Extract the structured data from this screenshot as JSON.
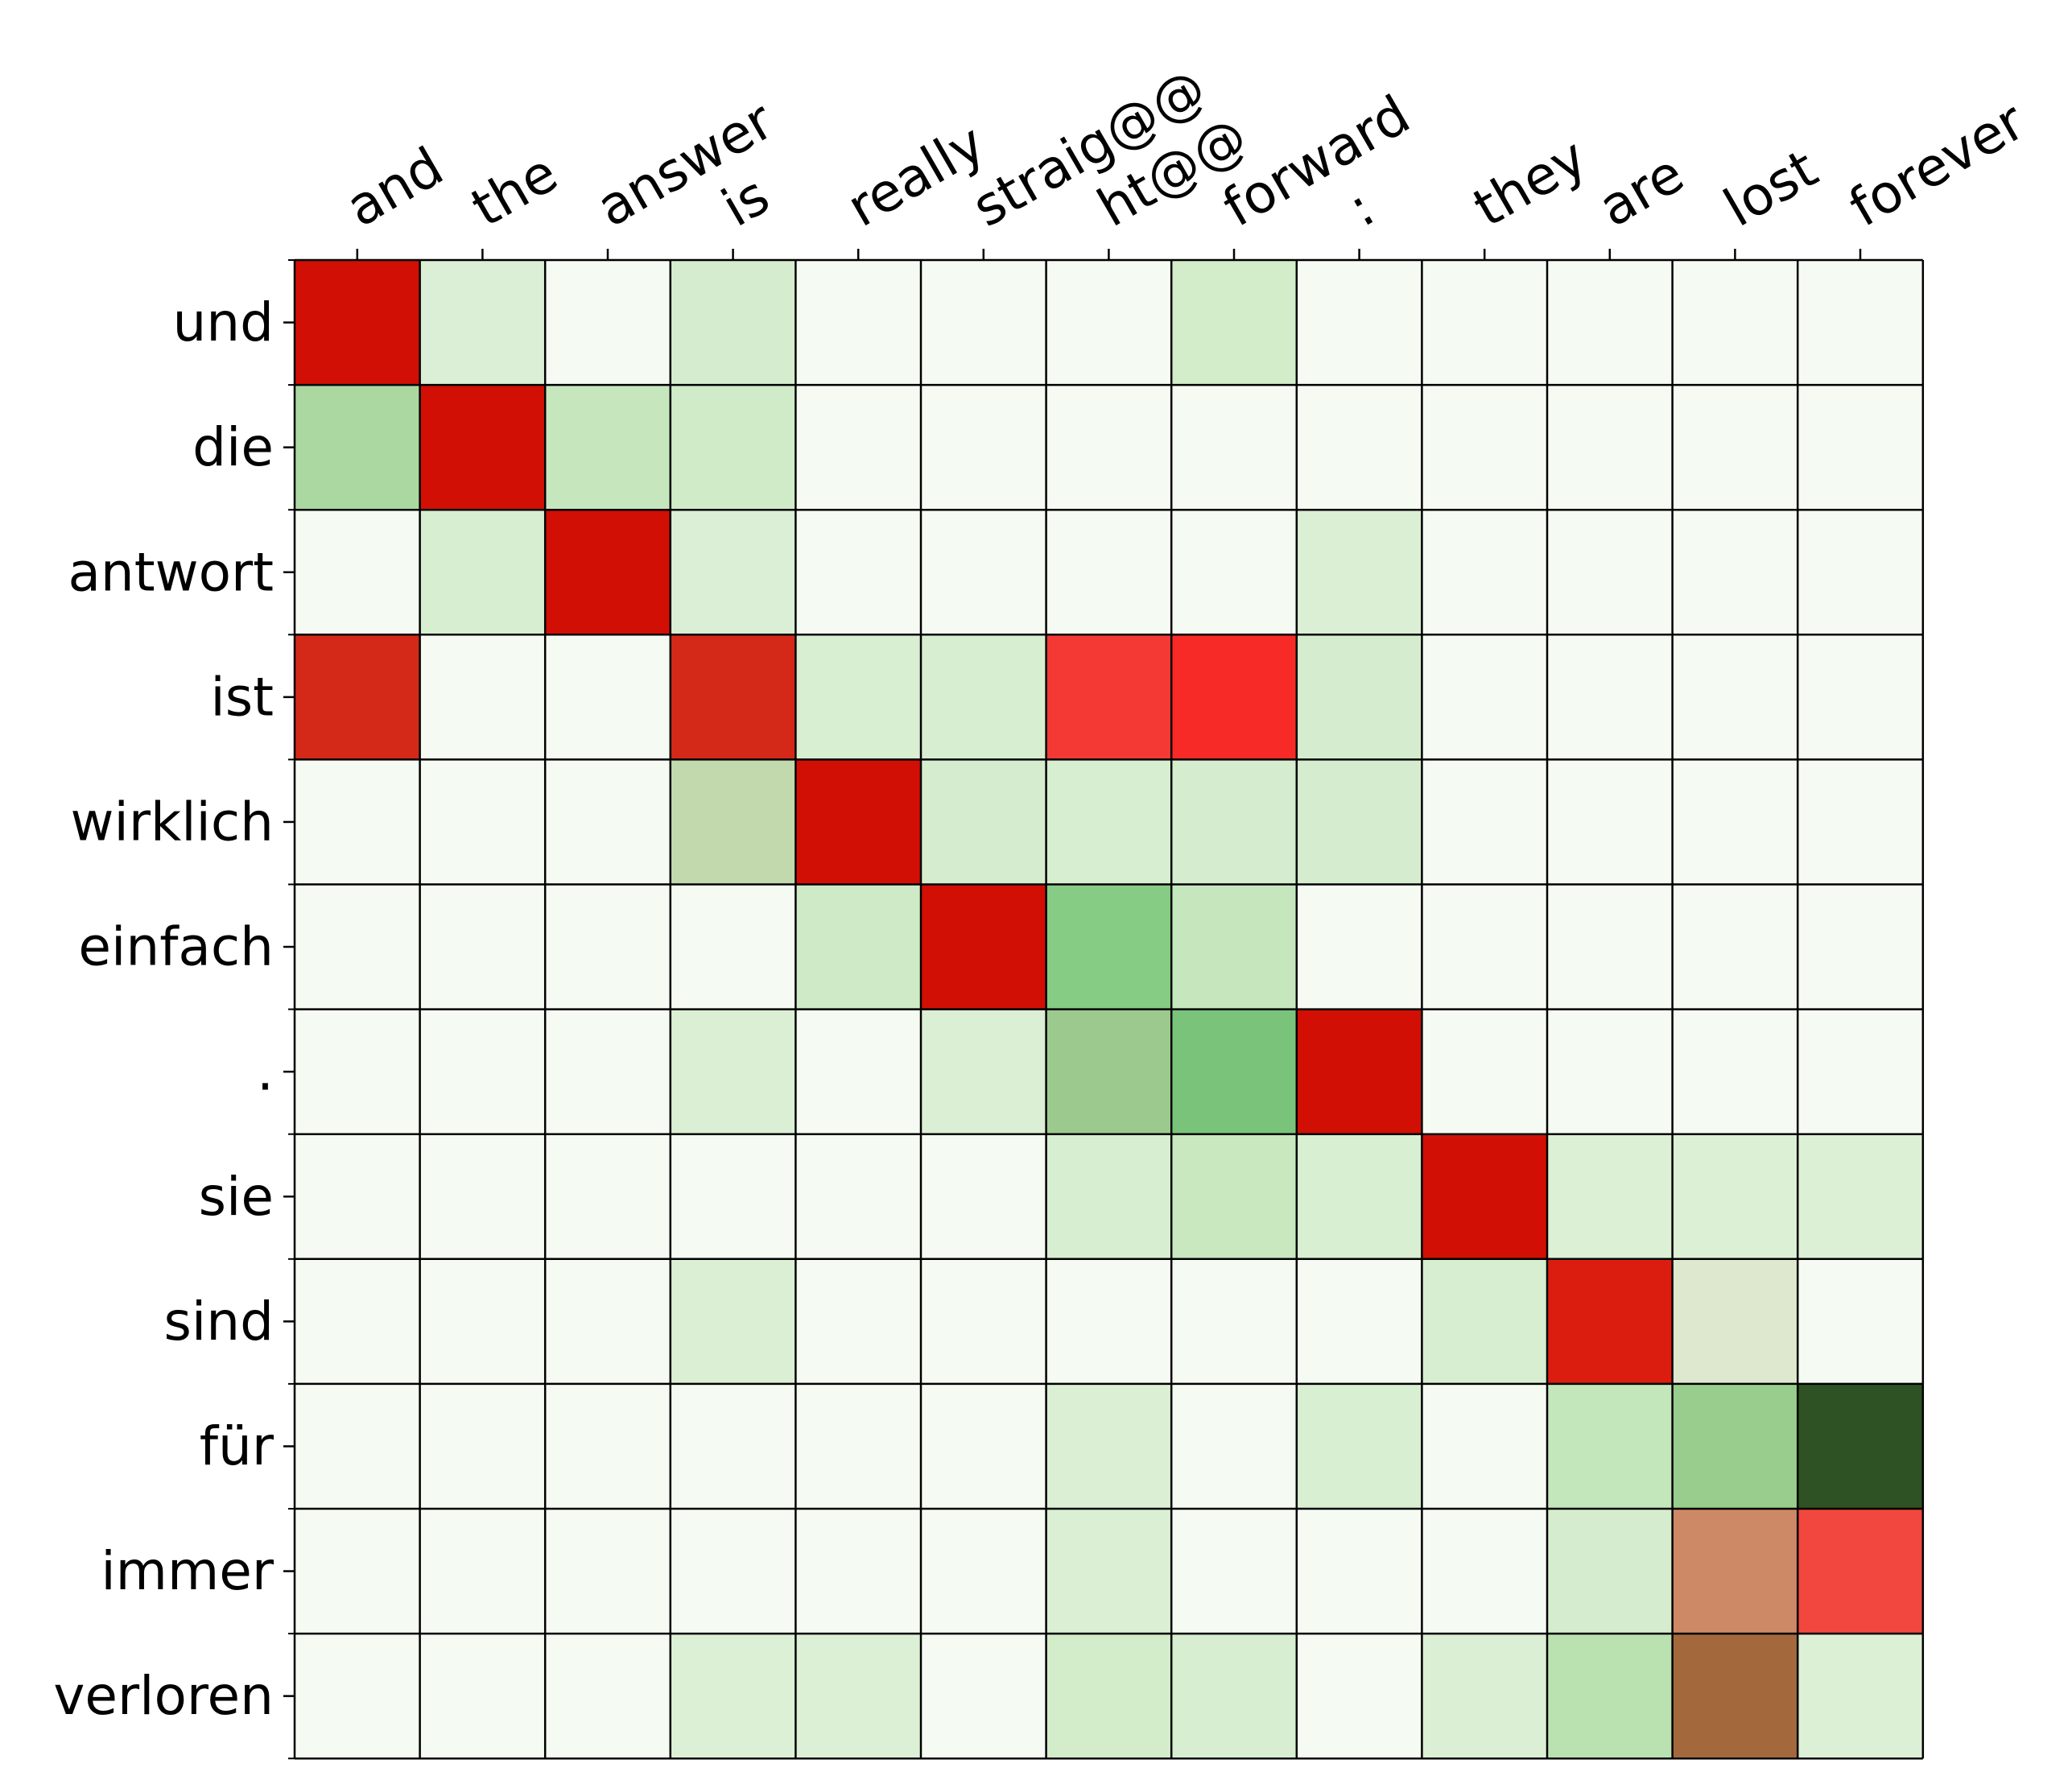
{
  "chart_data": {
    "type": "heatmap",
    "title": "",
    "xlabel": "",
    "ylabel": "",
    "x_tick_labels": [
      "and",
      "the",
      "answer",
      "is",
      "really",
      "straig@@",
      "ht@@",
      "forward",
      ":",
      "they",
      "are",
      "lost",
      "forever"
    ],
    "y_tick_labels": [
      "und",
      "die",
      "antwort",
      "ist",
      "wirklich",
      "einfach",
      ".",
      "sie",
      "sind",
      "für",
      "immer",
      "verloren"
    ],
    "cell_colors": [
      [
        "#d20f05",
        "#daefd5",
        "#f5faf2",
        "#d5edce",
        "#f5faf2",
        "#f5faf2",
        "#f5faf2",
        "#d3ecc9",
        "#f5faf2",
        "#f5faf2",
        "#f5faf2",
        "#f5faf2",
        "#f5faf2"
      ],
      [
        "#abd8a1",
        "#d20f05",
        "#c6e7be",
        "#cfebc8",
        "#f5faf2",
        "#f5faf2",
        "#f5faf2",
        "#f5faf2",
        "#f5faf2",
        "#f5faf2",
        "#f5faf2",
        "#f5faf2",
        "#f5faf2"
      ],
      [
        "#f5faf2",
        "#d7eed1",
        "#d20f05",
        "#daefd5",
        "#f5faf2",
        "#f5faf2",
        "#f5faf2",
        "#f5faf2",
        "#daefd3",
        "#f5faf2",
        "#f5faf2",
        "#f5faf2",
        "#f5faf2"
      ],
      [
        "#d42918",
        "#f5faf2",
        "#f5faf2",
        "#d42918",
        "#d8efd1",
        "#d7eed1",
        "#f43935",
        "#f72a27",
        "#d5edce",
        "#f5faf2",
        "#f5faf2",
        "#f5faf2",
        "#f5faf2"
      ],
      [
        "#f5faf2",
        "#f5faf2",
        "#f5faf2",
        "#c2d9ae",
        "#d20f05",
        "#d5edce",
        "#d7eed1",
        "#d5edce",
        "#d5edce",
        "#f5faf2",
        "#f5faf2",
        "#f5faf2",
        "#f5faf2"
      ],
      [
        "#f5faf2",
        "#f5faf2",
        "#f5faf2",
        "#f5faf2",
        "#ceeac7",
        "#d20f05",
        "#86cc84",
        "#c6e7be",
        "#f5faf2",
        "#f5faf2",
        "#f5faf2",
        "#f5faf2",
        "#f5faf2"
      ],
      [
        "#f5faf2",
        "#f5faf2",
        "#f5faf2",
        "#daefd3",
        "#f5faf2",
        "#daefd3",
        "#9cca8e",
        "#79c47a",
        "#d20f05",
        "#f5faf2",
        "#f5faf2",
        "#f5faf2",
        "#f5faf2"
      ],
      [
        "#f5faf2",
        "#f5faf2",
        "#f5faf2",
        "#f5faf2",
        "#f5faf2",
        "#f5faf2",
        "#d7eed1",
        "#c9e8c0",
        "#d8efd1",
        "#d20f05",
        "#dcf0d6",
        "#dcf0d6",
        "#dcf0d6"
      ],
      [
        "#f5faf2",
        "#f5faf2",
        "#f5faf2",
        "#daefd3",
        "#f5faf2",
        "#f5faf2",
        "#f5faf2",
        "#f5faf2",
        "#f5faf2",
        "#d7eed1",
        "#db1d10",
        "#dee8cf",
        "#f5faf2"
      ],
      [
        "#f5faf2",
        "#f5faf2",
        "#f5faf2",
        "#f5faf2",
        "#f5faf2",
        "#f5faf2",
        "#daefd3",
        "#f5faf2",
        "#d8efd1",
        "#f5faf2",
        "#c3e6bb",
        "#99cd8e",
        "#2e5223"
      ],
      [
        "#f5faf2",
        "#f5faf2",
        "#f5faf2",
        "#f5faf2",
        "#f5faf2",
        "#f5faf2",
        "#daefd3",
        "#f5faf2",
        "#f5faf2",
        "#f5faf2",
        "#d5edce",
        "#cd8866",
        "#f1473e"
      ],
      [
        "#f5faf2",
        "#f5faf2",
        "#f5faf2",
        "#dcf0d6",
        "#dcf0d6",
        "#f5faf2",
        "#d3ecc9",
        "#d7eed1",
        "#f5faf2",
        "#daefd3",
        "#bae2b0",
        "#a3693d",
        "#dcf0d6"
      ]
    ],
    "grid": true,
    "legend": "none",
    "colors": {
      "strong": "#d20f05",
      "weak": "#f5faf2",
      "grid_line": "#000000"
    }
  }
}
